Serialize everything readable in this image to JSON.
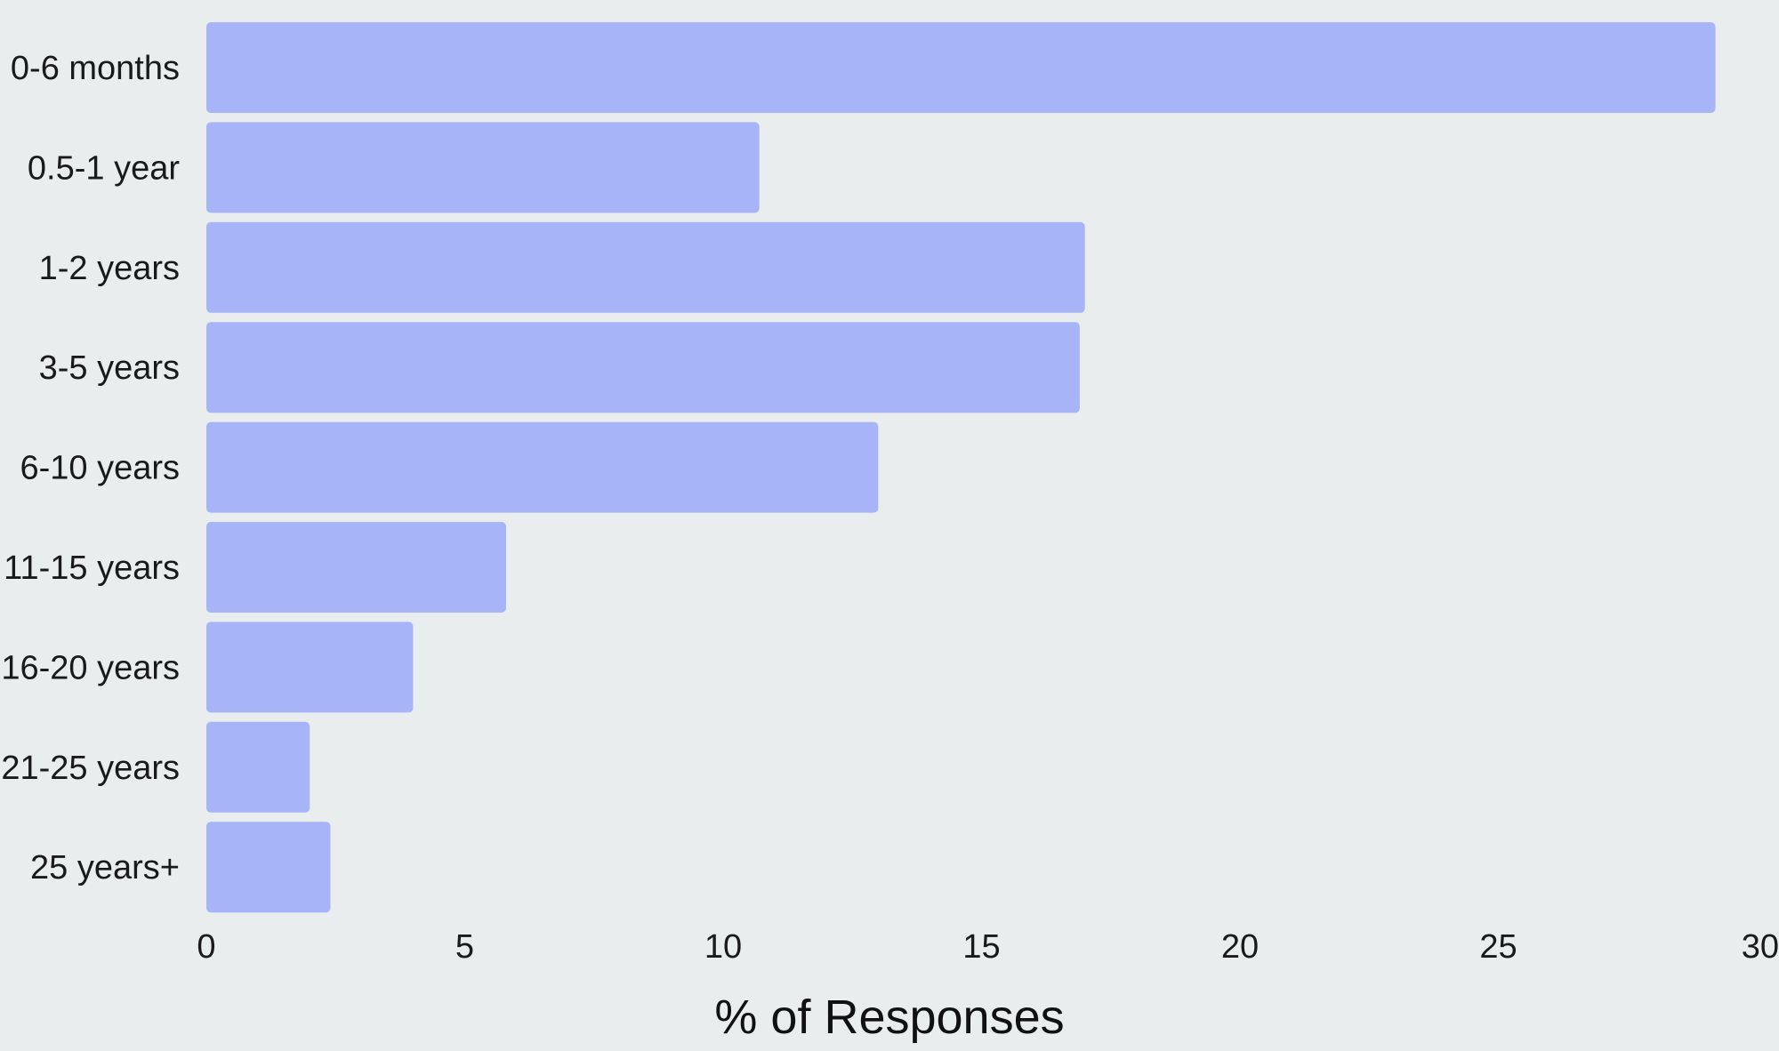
{
  "chart_data": {
    "type": "bar",
    "orientation": "horizontal",
    "title": "",
    "xlabel": "% of Responses",
    "ylabel": "",
    "categories": [
      "0-6 months",
      "0.5-1 year",
      "1-2 years",
      "3-5 years",
      "6-10 years",
      "11-15 years",
      "16-20 years",
      "21-25 years",
      "25 years+"
    ],
    "values": [
      29.2,
      10.7,
      17.0,
      16.9,
      13.0,
      5.8,
      4.0,
      2.0,
      2.4
    ],
    "xlim": [
      0,
      30
    ],
    "xticks": [
      "0",
      "5",
      "10",
      "15",
      "20",
      "25",
      "30"
    ],
    "grid": false,
    "legend": "none",
    "colors": {
      "bar": "#a7b4f7",
      "background": "#e9edee",
      "text": "#1a1a1a"
    }
  }
}
